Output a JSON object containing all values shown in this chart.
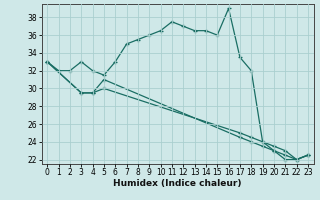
{
  "xlabel": "Humidex (Indice chaleur)",
  "ylabel": "",
  "xlim": [
    -0.5,
    23.5
  ],
  "ylim": [
    21.5,
    39.5
  ],
  "yticks": [
    22,
    24,
    26,
    28,
    30,
    32,
    34,
    36,
    38
  ],
  "xticks": [
    0,
    1,
    2,
    3,
    4,
    5,
    6,
    7,
    8,
    9,
    10,
    11,
    12,
    13,
    14,
    15,
    16,
    17,
    18,
    19,
    20,
    21,
    22,
    23
  ],
  "background_color": "#cfe8e8",
  "grid_color": "#aacfcf",
  "line_color": "#1a6e64",
  "line1_x": [
    0,
    1,
    2,
    3,
    4,
    5,
    6,
    7,
    8,
    9,
    10,
    11,
    12,
    13,
    14,
    15,
    16,
    17,
    18,
    19,
    20,
    21,
    22,
    23
  ],
  "line1_y": [
    33,
    32,
    32,
    33,
    32,
    31.5,
    33,
    35,
    35.5,
    36,
    36.5,
    37.5,
    37,
    36.5,
    36.5,
    36,
    39,
    33.5,
    32,
    24,
    23,
    22,
    22,
    22.5
  ],
  "line2_x": [
    0,
    3,
    4,
    5,
    17,
    18,
    19,
    20,
    21,
    22,
    23
  ],
  "line2_y": [
    33,
    29.5,
    29.5,
    31,
    24.5,
    24,
    23.5,
    23,
    22.5,
    22,
    22.5
  ],
  "line3_x": [
    0,
    3,
    4,
    5,
    17,
    18,
    19,
    20,
    21,
    22,
    23
  ],
  "line3_y": [
    33,
    29.5,
    29.5,
    30,
    25,
    24.5,
    24,
    23.5,
    23,
    22,
    22.5
  ]
}
